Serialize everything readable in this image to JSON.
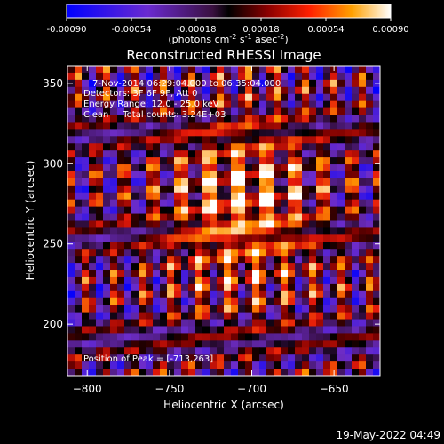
{
  "chart_data": {
    "type": "heatmap",
    "title": "Reconstructed RHESSI Image",
    "xlabel": "Heliocentric X (arcsec)",
    "ylabel": "Heliocentric Y (arcsec)",
    "xlim": [
      -812,
      -622
    ],
    "ylim": [
      168,
      361
    ],
    "x_ticks": [
      -800,
      -750,
      -700,
      -650
    ],
    "y_ticks": [
      200,
      250,
      300,
      350
    ],
    "colorbar": {
      "range": [
        -0.0009,
        0.0009
      ],
      "ticks": [
        -0.0009,
        -0.00054,
        -0.00018,
        0.00018,
        0.00054,
        0.0009
      ],
      "tick_labels": [
        "-0.00090",
        "-0.00054",
        "-0.00018",
        "0.00018",
        "0.00054",
        "0.00090"
      ],
      "unit_main": "(photons cm",
      "unit_sup1": "-2",
      "unit_mid1": " s",
      "unit_sup2": "-1",
      "unit_mid2": " asec",
      "unit_sup3": "-2",
      "unit_end": ")"
    },
    "peak": {
      "x": -713,
      "y": 263
    },
    "colors": {
      "neg_low": "#0000ff",
      "neg_high": "#8b2fb7",
      "zero": "#000000",
      "pos_mid": "#e0201e",
      "pos_high": "#ff9400",
      "pos_max": "#ffffff"
    }
  },
  "annotations": {
    "line1": "7-Nov-2014 06:29:04.000 to 06:35:04.000",
    "line2": "Detectors: 3F 6F 9F, Att 0",
    "line3": "Energy Range: 12.0 - 25.0 keV",
    "line4": "Clean     Total counts: 3.24E+03",
    "peak_label": "Position of Peak = [-713,263]"
  },
  "footer": {
    "timestamp": "19-May-2022 04:49"
  }
}
